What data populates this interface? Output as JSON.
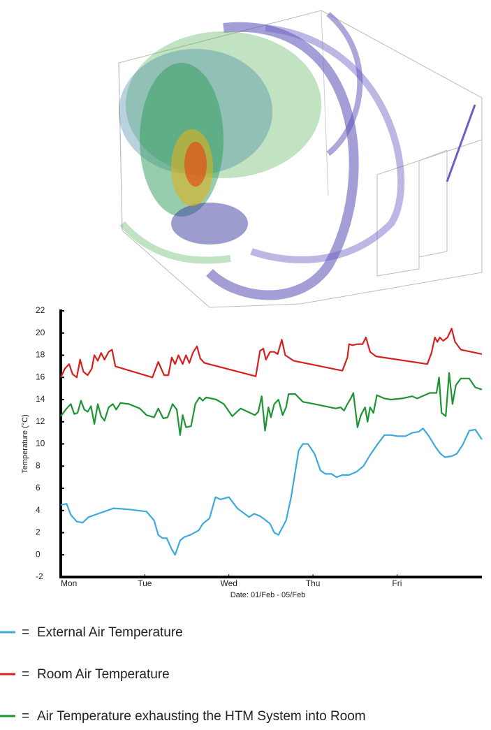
{
  "chart_data": {
    "type": "line",
    "y_label": "Temperature (°C)",
    "x_label": "Date: 01/Feb - 05/Feb",
    "legend_separator": "=",
    "xlim": [
      0,
      5.01
    ],
    "xticks": [
      {
        "value": 0,
        "label": "Mon"
      },
      {
        "value": 1,
        "label": "Tue"
      },
      {
        "value": 2,
        "label": "Wed"
      },
      {
        "value": 3,
        "label": "Thu"
      },
      {
        "value": 4,
        "label": "Fri"
      }
    ],
    "ylim": [
      -2,
      22
    ],
    "yticks": [
      -2,
      0,
      2,
      4,
      6,
      8,
      10,
      12,
      14,
      16,
      18,
      20,
      22
    ],
    "series": [
      {
        "name": "External Air Temperature",
        "color": "#3da9dc",
        "x": [
          0,
          0.07,
          0.12,
          0.19,
          0.26,
          0.33,
          0.48,
          0.63,
          0.81,
          1.02,
          1.11,
          1.16,
          1.21,
          1.26,
          1.32,
          1.36,
          1.42,
          1.47,
          1.54,
          1.64,
          1.69,
          1.77,
          1.84,
          1.9,
          2.0,
          2.1,
          2.24,
          2.3,
          2.37,
          2.44,
          2.49,
          2.54,
          2.59,
          2.68,
          2.74,
          2.83,
          2.88,
          2.94,
          3.02,
          3.09,
          3.15,
          3.22,
          3.28,
          3.35,
          3.43,
          3.52,
          3.6,
          3.68,
          3.77,
          3.85,
          3.93,
          4.01,
          4.1,
          4.18,
          4.26,
          4.31,
          4.38,
          4.46,
          4.52,
          4.57,
          4.65,
          4.71,
          4.78,
          4.86,
          4.93,
          5.01
        ],
        "values": [
          4.5,
          4.6,
          3.6,
          3.0,
          2.9,
          3.4,
          3.8,
          4.2,
          4.1,
          3.9,
          3.1,
          1.8,
          1.5,
          1.5,
          0.5,
          0,
          1.3,
          1.6,
          1.8,
          2.2,
          2.8,
          3.3,
          5.2,
          5.0,
          5.2,
          4.2,
          3.4,
          3.7,
          3.5,
          3.1,
          2.8,
          2.0,
          1.8,
          3.1,
          5.2,
          9.4,
          10.0,
          10.0,
          9.1,
          7.6,
          7.3,
          7.3,
          7.0,
          7.2,
          7.2,
          7.5,
          8.0,
          9.0,
          10.0,
          10.8,
          10.8,
          10.7,
          10.7,
          11.0,
          11.1,
          11.4,
          10.7,
          9.7,
          9.1,
          8.8,
          8.9,
          9.1,
          9.9,
          11.2,
          11.3,
          10.4
        ]
      },
      {
        "name": "Room Air Temperature",
        "color": "#d6201f",
        "x": [
          0,
          0.05,
          0.1,
          0.14,
          0.19,
          0.23,
          0.27,
          0.32,
          0.37,
          0.4,
          0.44,
          0.48,
          0.52,
          0.57,
          0.61,
          0.65,
          1.09,
          1.16,
          1.23,
          1.28,
          1.32,
          1.36,
          1.4,
          1.45,
          1.49,
          1.53,
          1.57,
          1.62,
          1.66,
          1.71,
          2.32,
          2.37,
          2.41,
          2.44,
          2.49,
          2.54,
          2.58,
          2.63,
          2.67,
          2.77,
          3.35,
          3.41,
          3.43,
          3.47,
          3.53,
          3.59,
          3.63,
          3.68,
          3.75,
          4.36,
          4.41,
          4.45,
          4.48,
          4.51,
          4.55,
          4.6,
          4.65,
          4.69,
          4.76,
          5.01
        ],
        "values": [
          16.0,
          16.8,
          17.2,
          16.3,
          16.0,
          17.6,
          16.5,
          16.2,
          16.8,
          18.0,
          17.5,
          18.2,
          17.6,
          18.3,
          18.5,
          17.0,
          16.0,
          17.4,
          16.2,
          16.2,
          17.8,
          17.2,
          18.0,
          17.2,
          18.0,
          17.3,
          18.2,
          18.8,
          17.7,
          17.3,
          16.1,
          18.4,
          18.6,
          17.6,
          18.3,
          18.3,
          18.1,
          19.4,
          18.0,
          17.5,
          16.6,
          17.8,
          19.0,
          18.9,
          19.0,
          19.0,
          19.6,
          18.3,
          17.9,
          17.2,
          18.2,
          19.6,
          19.2,
          19.6,
          19.3,
          19.6,
          20.4,
          19.2,
          18.5,
          18.1
        ]
      },
      {
        "name": "Air Temperature exhausting the HTM System into Room",
        "color": "#1e9433",
        "x": [
          0,
          0.07,
          0.12,
          0.16,
          0.2,
          0.24,
          0.28,
          0.32,
          0.36,
          0.4,
          0.44,
          0.48,
          0.52,
          0.57,
          0.62,
          0.66,
          0.71,
          0.81,
          0.94,
          1.02,
          1.11,
          1.16,
          1.22,
          1.27,
          1.33,
          1.38,
          1.42,
          1.45,
          1.49,
          1.55,
          1.6,
          1.65,
          1.69,
          1.73,
          1.85,
          1.94,
          2.04,
          2.14,
          2.31,
          2.35,
          2.39,
          2.43,
          2.47,
          2.5,
          2.54,
          2.59,
          2.64,
          2.68,
          2.71,
          2.79,
          2.88,
          3.02,
          3.27,
          3.33,
          3.37,
          3.41,
          3.45,
          3.48,
          3.53,
          3.57,
          3.62,
          3.65,
          3.68,
          3.72,
          3.76,
          3.85,
          3.93,
          4.06,
          4.18,
          4.24,
          4.39,
          4.47,
          4.5,
          4.53,
          4.58,
          4.62,
          4.66,
          4.7,
          4.76,
          4.86,
          4.93,
          5.01
        ],
        "values": [
          12.5,
          13.2,
          13.6,
          12.7,
          12.8,
          13.9,
          13.1,
          12.9,
          13.4,
          11.8,
          13.6,
          12.5,
          12.1,
          13.3,
          13.6,
          13.1,
          13.7,
          13.6,
          13.2,
          12.6,
          12.4,
          13.2,
          12.3,
          12.4,
          13.6,
          13.1,
          10.8,
          12.6,
          11.5,
          11.6,
          13.6,
          14.2,
          13.9,
          14.2,
          14.0,
          13.6,
          12.5,
          13.2,
          12.6,
          12.9,
          14.3,
          11.2,
          13.3,
          12.4,
          13.6,
          14.0,
          12.6,
          13.3,
          14.5,
          14.5,
          13.8,
          13.6,
          13.2,
          13.3,
          13.0,
          13.6,
          14.1,
          14.6,
          11.5,
          12.6,
          13.3,
          12.0,
          13.3,
          12.8,
          14.4,
          14.1,
          14.0,
          14.1,
          14.3,
          14.1,
          14.6,
          14.6,
          16.0,
          12.8,
          12.5,
          16.4,
          13.6,
          15.3,
          15.9,
          15.9,
          15.1,
          14.9
        ]
      }
    ]
  }
}
